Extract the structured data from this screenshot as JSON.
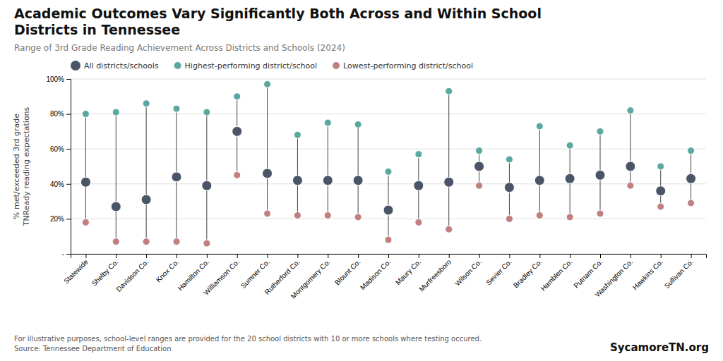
{
  "chart_data": {
    "type": "dot",
    "title": "Academic Outcomes Vary Significantly Both Across and Within School\nDistricts in Tennessee",
    "subtitle": "Range of 3rd Grade Reading Achievement Across Districts and Schools (2024)",
    "ylabel": "% met/exceeded 3rd grade\nTNReady reading expectations",
    "footnote": "For illustrative purposes, school-level ranges are provided for the 20 school districts with 10 or more schools where testing occured.\nSource: Tennessee Department of Education",
    "watermark": "SycamoreTN.org",
    "categories": [
      "Statewide",
      "Shelby Co.",
      "Davidson Co.",
      "Knox Co.",
      "Hamilton Co.",
      "Williamson Co.",
      "Sumner Co.",
      "Rutherford Co.",
      "Montgomery Co.",
      "Blount Co.",
      "Madison Co.",
      "Maury Co.",
      "Murfreesboro",
      "Wilson Co.",
      "Sevier Co.",
      "Bradley Co.",
      "Hamblen Co.",
      "Putnam Co.",
      "Washington Co.",
      "Hawkins Co.",
      "Sullivan Co."
    ],
    "series": [
      {
        "name": "All districts/schools",
        "color": "#4a5568",
        "values": [
          41,
          27,
          31,
          44,
          39,
          70,
          46,
          42,
          42,
          42,
          25,
          39,
          41,
          50,
          38,
          42,
          43,
          45,
          50,
          36,
          43
        ]
      },
      {
        "name": "Highest-performing district/school",
        "color": "#5ba8a0",
        "values": [
          80,
          81,
          86,
          83,
          81,
          90,
          97,
          68,
          75,
          74,
          47,
          57,
          93,
          59,
          54,
          73,
          62,
          70,
          82,
          50,
          59
        ]
      },
      {
        "name": "Lowest-performing district/school",
        "color": "#c08080",
        "values": [
          18,
          7,
          7,
          7,
          6,
          45,
          23,
          22,
          22,
          21,
          8,
          18,
          14,
          39,
          20,
          22,
          21,
          23,
          39,
          27,
          29
        ]
      }
    ],
    "marker": "circle",
    "ylim": [
      0,
      100
    ],
    "yticks": [
      {
        "value": 0,
        "label": "-"
      },
      {
        "value": 20,
        "label": "20%"
      },
      {
        "value": 40,
        "label": "40%"
      },
      {
        "value": 60,
        "label": "60%"
      },
      {
        "value": 80,
        "label": "80%"
      },
      {
        "value": 100,
        "label": "100%"
      }
    ],
    "grid": true,
    "legend": "top"
  }
}
